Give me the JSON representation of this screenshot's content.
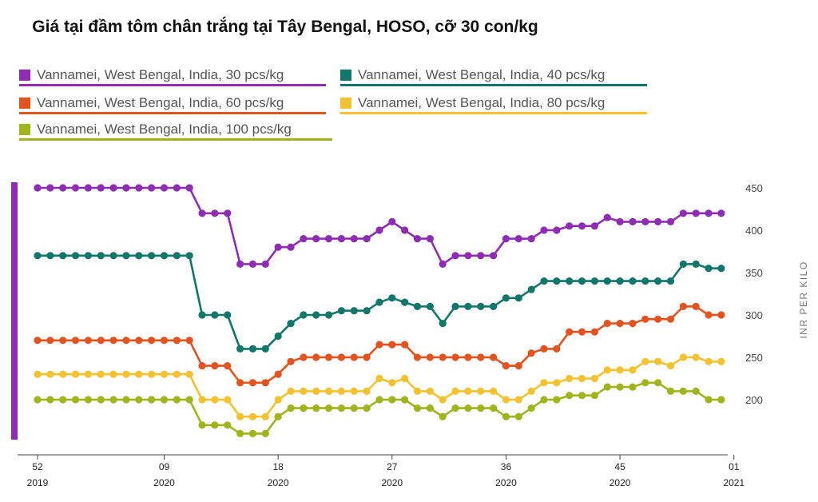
{
  "chart_data": {
    "type": "line",
    "title": "Giá tại đầm tôm chân trắng tại Tây Bengal, HOSO, cỡ 30 con/kg",
    "ylabel": "INR PER KILO",
    "xlabel": "",
    "ylim": [
      150,
      460
    ],
    "yticks": [
      200,
      250,
      300,
      350,
      400,
      450
    ],
    "xticks": [
      {
        "week": "52",
        "year": "2019",
        "index": 0
      },
      {
        "week": "09",
        "year": "2020",
        "index": 10
      },
      {
        "week": "18",
        "year": "2020",
        "index": 19
      },
      {
        "week": "27",
        "year": "2020",
        "index": 28
      },
      {
        "week": "36",
        "year": "2020",
        "index": 37
      },
      {
        "week": "45",
        "year": "2020",
        "index": 46
      },
      {
        "week": "01",
        "year": "2021",
        "index": 55
      }
    ],
    "series": [
      {
        "name": "Vannamei, West Bengal, India, 30 pcs/kg",
        "color": "#8e2db3",
        "values": [
          450,
          450,
          450,
          450,
          450,
          450,
          450,
          450,
          450,
          450,
          450,
          450,
          450,
          420,
          420,
          420,
          360,
          360,
          360,
          380,
          380,
          390,
          390,
          390,
          390,
          390,
          390,
          400,
          410,
          400,
          390,
          390,
          360,
          370,
          370,
          370,
          370,
          390,
          390,
          390,
          400,
          400,
          405,
          405,
          405,
          415,
          410,
          410,
          410,
          410,
          410,
          420,
          420,
          420,
          420
        ]
      },
      {
        "name": "Vannamei, West Bengal, India, 40 pcs/kg",
        "color": "#12766a",
        "values": [
          370,
          370,
          370,
          370,
          370,
          370,
          370,
          370,
          370,
          370,
          370,
          370,
          370,
          300,
          300,
          300,
          260,
          260,
          260,
          275,
          290,
          300,
          300,
          300,
          305,
          305,
          305,
          315,
          320,
          315,
          310,
          310,
          290,
          310,
          310,
          310,
          310,
          320,
          320,
          330,
          340,
          340,
          340,
          340,
          340,
          340,
          340,
          340,
          340,
          340,
          340,
          360,
          360,
          355,
          355
        ]
      },
      {
        "name": "Vannamei, West Bengal, India, 60 pcs/kg",
        "color": "#e2531f",
        "values": [
          270,
          270,
          270,
          270,
          270,
          270,
          270,
          270,
          270,
          270,
          270,
          270,
          270,
          240,
          240,
          240,
          220,
          220,
          220,
          230,
          245,
          250,
          250,
          250,
          250,
          250,
          250,
          265,
          265,
          265,
          250,
          250,
          250,
          250,
          250,
          250,
          250,
          240,
          240,
          255,
          260,
          260,
          280,
          280,
          280,
          290,
          290,
          290,
          295,
          295,
          295,
          310,
          310,
          300,
          300
        ]
      },
      {
        "name": "Vannamei, West Bengal, India, 80 pcs/kg",
        "color": "#f2c230",
        "values": [
          230,
          230,
          230,
          230,
          230,
          230,
          230,
          230,
          230,
          230,
          230,
          230,
          230,
          200,
          200,
          200,
          180,
          180,
          180,
          200,
          210,
          210,
          210,
          210,
          210,
          210,
          210,
          225,
          220,
          225,
          210,
          210,
          200,
          210,
          210,
          210,
          210,
          200,
          200,
          210,
          220,
          220,
          225,
          225,
          225,
          235,
          235,
          235,
          245,
          245,
          240,
          250,
          250,
          245,
          245
        ]
      },
      {
        "name": "Vannamei, West Bengal, India, 100 pcs/kg",
        "color": "#a0b41e",
        "values": [
          200,
          200,
          200,
          200,
          200,
          200,
          200,
          200,
          200,
          200,
          200,
          200,
          200,
          170,
          170,
          170,
          160,
          160,
          160,
          180,
          190,
          190,
          190,
          190,
          190,
          190,
          190,
          200,
          200,
          200,
          190,
          190,
          180,
          190,
          190,
          190,
          190,
          180,
          180,
          190,
          200,
          200,
          205,
          205,
          205,
          215,
          215,
          215,
          220,
          220,
          210,
          210,
          210,
          200,
          200
        ]
      }
    ]
  },
  "colors": {
    "accent_bar": "#8e2db3",
    "axis": "#444444"
  }
}
